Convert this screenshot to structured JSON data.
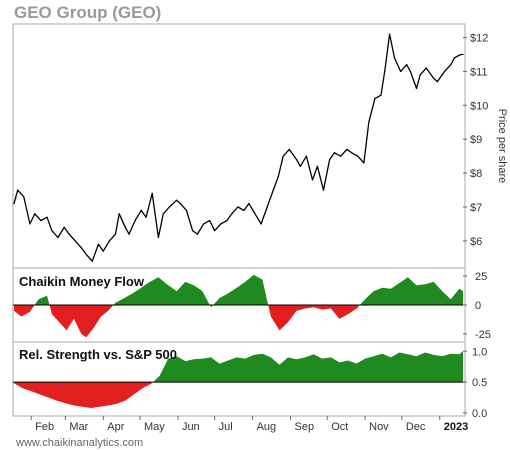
{
  "chart_data": [
    {
      "type": "line",
      "title": "GEO Group (GEO)",
      "ylabel": "Price per share",
      "ylim": [
        5.2,
        12.4
      ],
      "yticks": [
        "$6",
        "$7",
        "$8",
        "$9",
        "$10",
        "$11",
        "$12"
      ],
      "ytick_values": [
        6,
        7,
        8,
        9,
        10,
        11,
        12
      ],
      "x_start": "2022-01-18",
      "x_end": "2023-01-20",
      "series": [
        {
          "x": [
            "2022-01-18",
            "2022-01-21",
            "2022-01-26",
            "2022-01-31",
            "2022-02-04",
            "2022-02-09",
            "2022-02-14",
            "2022-02-18",
            "2022-02-23",
            "2022-02-28",
            "2022-03-04",
            "2022-03-09",
            "2022-03-14",
            "2022-03-18",
            "2022-03-23",
            "2022-03-28",
            "2022-04-01",
            "2022-04-06",
            "2022-04-11",
            "2022-04-14",
            "2022-04-19",
            "2022-04-22",
            "2022-04-27",
            "2022-05-02",
            "2022-05-06",
            "2022-05-11",
            "2022-05-16",
            "2022-05-20",
            "2022-05-25",
            "2022-05-31",
            "2022-06-03",
            "2022-06-08",
            "2022-06-13",
            "2022-06-17",
            "2022-06-22",
            "2022-06-27",
            "2022-07-01",
            "2022-07-06",
            "2022-07-11",
            "2022-07-15",
            "2022-07-20",
            "2022-07-25",
            "2022-07-29",
            "2022-08-03",
            "2022-08-08",
            "2022-08-12",
            "2022-08-17",
            "2022-08-22",
            "2022-08-26",
            "2022-08-31",
            "2022-09-06",
            "2022-09-09",
            "2022-09-14",
            "2022-09-19",
            "2022-09-23",
            "2022-09-28",
            "2022-10-03",
            "2022-10-07",
            "2022-10-12",
            "2022-10-17",
            "2022-10-21",
            "2022-10-26",
            "2022-10-31",
            "2022-11-04",
            "2022-11-09",
            "2022-11-14",
            "2022-11-17",
            "2022-11-21",
            "2022-11-25",
            "2022-11-30",
            "2022-12-05",
            "2022-12-08",
            "2022-12-13",
            "2022-12-16",
            "2022-12-21",
            "2022-12-27",
            "2022-12-30",
            "2023-01-05",
            "2023-01-10",
            "2023-01-13",
            "2023-01-18",
            "2023-01-20"
          ],
          "values": [
            7.1,
            7.5,
            7.3,
            6.5,
            6.8,
            6.6,
            6.7,
            6.3,
            6.1,
            6.4,
            6.2,
            6.0,
            5.8,
            5.6,
            5.4,
            5.9,
            5.7,
            6.0,
            6.2,
            6.8,
            6.4,
            6.2,
            6.6,
            6.9,
            6.7,
            7.4,
            6.1,
            6.8,
            7.0,
            7.2,
            7.1,
            6.9,
            6.3,
            6.2,
            6.5,
            6.6,
            6.3,
            6.5,
            6.6,
            6.8,
            7.0,
            6.9,
            7.1,
            6.8,
            6.5,
            6.9,
            7.4,
            7.9,
            8.5,
            8.7,
            8.4,
            8.2,
            8.5,
            7.8,
            8.2,
            7.5,
            8.4,
            8.6,
            8.5,
            8.7,
            8.6,
            8.5,
            8.3,
            9.5,
            10.2,
            10.3,
            11.0,
            12.1,
            11.4,
            11.0,
            11.2,
            11.0,
            10.5,
            10.9,
            11.1,
            10.8,
            10.7,
            11.0,
            11.2,
            11.4,
            11.5,
            11.5
          ]
        }
      ]
    },
    {
      "type": "area",
      "title": "Chaikin Money Flow",
      "ylim": [
        -32,
        32
      ],
      "yticks": [
        "25",
        "0",
        "-25"
      ],
      "ytick_values": [
        25,
        0,
        -25
      ],
      "positive_color": "#1f8a1f",
      "negative_color": "#e31e1e",
      "series": [
        {
          "x": [
            "2022-01-18",
            "2022-01-24",
            "2022-01-31",
            "2022-02-07",
            "2022-02-14",
            "2022-02-18",
            "2022-02-24",
            "2022-03-02",
            "2022-03-08",
            "2022-03-14",
            "2022-03-18",
            "2022-03-24",
            "2022-03-30",
            "2022-04-05",
            "2022-04-11",
            "2022-04-18",
            "2022-04-25",
            "2022-05-02",
            "2022-05-09",
            "2022-05-16",
            "2022-05-23",
            "2022-05-31",
            "2022-06-07",
            "2022-06-14",
            "2022-06-21",
            "2022-06-28",
            "2022-07-05",
            "2022-07-12",
            "2022-07-19",
            "2022-07-26",
            "2022-08-02",
            "2022-08-09",
            "2022-08-16",
            "2022-08-23",
            "2022-08-30",
            "2022-09-06",
            "2022-09-13",
            "2022-09-20",
            "2022-09-27",
            "2022-10-04",
            "2022-10-11",
            "2022-10-18",
            "2022-10-25",
            "2022-11-01",
            "2022-11-08",
            "2022-11-15",
            "2022-11-22",
            "2022-11-29",
            "2022-12-06",
            "2022-12-13",
            "2022-12-20",
            "2022-12-27",
            "2023-01-03",
            "2023-01-10",
            "2023-01-17",
            "2023-01-20"
          ],
          "values": [
            -5,
            -10,
            -6,
            5,
            8,
            -8,
            -15,
            -22,
            -12,
            -25,
            -28,
            -20,
            -10,
            -5,
            2,
            6,
            10,
            15,
            20,
            24,
            18,
            12,
            20,
            17,
            12,
            -2,
            6,
            10,
            15,
            20,
            26,
            22,
            -10,
            -22,
            -15,
            -5,
            -3,
            -2,
            -4,
            -3,
            -12,
            -8,
            -3,
            5,
            12,
            15,
            14,
            19,
            24,
            17,
            18,
            20,
            12,
            5,
            14,
            12
          ]
        }
      ]
    },
    {
      "type": "area",
      "title": "Rel. Strength vs. S&P 500",
      "ylim": [
        -0.05,
        1.15
      ],
      "yticks": [
        "1.0",
        "0.5",
        "0.0"
      ],
      "ytick_values": [
        1.0,
        0.5,
        0.0
      ],
      "positive_color": "#1f8a1f",
      "negative_color": "#e31e1e",
      "baseline": 0.5,
      "series": [
        {
          "x": [
            "2022-01-18",
            "2022-01-25",
            "2022-02-01",
            "2022-02-08",
            "2022-02-15",
            "2022-02-22",
            "2022-03-01",
            "2022-03-08",
            "2022-03-15",
            "2022-03-22",
            "2022-03-29",
            "2022-04-05",
            "2022-04-12",
            "2022-04-19",
            "2022-04-26",
            "2022-05-03",
            "2022-05-10",
            "2022-05-17",
            "2022-05-24",
            "2022-05-31",
            "2022-06-07",
            "2022-06-14",
            "2022-06-21",
            "2022-06-28",
            "2022-07-05",
            "2022-07-12",
            "2022-07-19",
            "2022-07-26",
            "2022-08-02",
            "2022-08-09",
            "2022-08-16",
            "2022-08-23",
            "2022-08-30",
            "2022-09-06",
            "2022-09-13",
            "2022-09-20",
            "2022-09-27",
            "2022-10-04",
            "2022-10-11",
            "2022-10-18",
            "2022-10-25",
            "2022-11-01",
            "2022-11-08",
            "2022-11-15",
            "2022-11-22",
            "2022-11-29",
            "2022-12-06",
            "2022-12-13",
            "2022-12-20",
            "2022-12-27",
            "2023-01-03",
            "2023-01-10",
            "2023-01-17",
            "2023-01-20"
          ],
          "values": [
            0.48,
            0.4,
            0.35,
            0.3,
            0.25,
            0.2,
            0.16,
            0.12,
            0.1,
            0.08,
            0.1,
            0.12,
            0.15,
            0.2,
            0.3,
            0.4,
            0.47,
            0.6,
            0.88,
            0.92,
            0.84,
            0.87,
            0.88,
            0.9,
            0.8,
            0.85,
            0.9,
            0.88,
            0.94,
            0.96,
            0.9,
            0.78,
            0.9,
            0.87,
            0.9,
            0.95,
            0.88,
            0.9,
            0.82,
            0.85,
            0.8,
            0.88,
            0.92,
            0.96,
            0.9,
            0.98,
            0.95,
            0.92,
            0.98,
            0.94,
            0.92,
            0.96,
            0.95,
            1.0
          ]
        }
      ]
    }
  ],
  "x_axis": {
    "tick_labels": [
      "Feb",
      "Mar",
      "Apr",
      "May",
      "Jun",
      "Jul",
      "Aug",
      "Sep",
      "Oct",
      "Nov",
      "Dec",
      "2023"
    ],
    "tick_dates": [
      "2022-02-01",
      "2022-03-01",
      "2022-04-01",
      "2022-05-01",
      "2022-06-01",
      "2022-07-01",
      "2022-08-01",
      "2022-09-01",
      "2022-10-01",
      "2022-11-01",
      "2022-12-01",
      "2023-01-01"
    ],
    "bold_label": "2023"
  },
  "footer": "www.chaikinanalytics.com",
  "colors": {
    "price_line": "#000000",
    "frame": "#aaaaaa",
    "title_gray": "#9a9a9a"
  }
}
